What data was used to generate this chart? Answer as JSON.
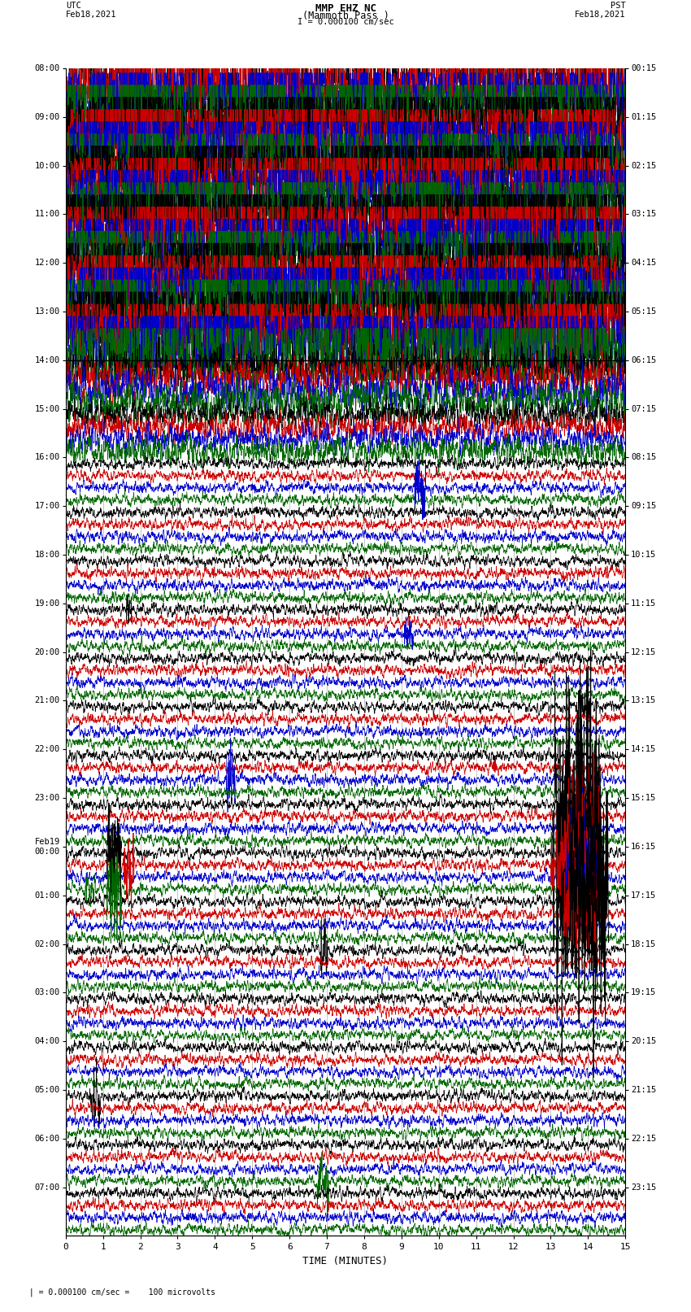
{
  "title_line1": "MMP EHZ NC",
  "title_line2": "(Mammoth Pass )",
  "scale_label": "I = 0.000100 cm/sec",
  "utc_label": "UTC\nFeb18,2021",
  "pst_label": "PST\nFeb18,2021",
  "xlabel": "TIME (MINUTES)",
  "footer": "= 0.000100 cm/sec =    100 microvolts",
  "fig_width": 8.5,
  "fig_height": 16.13,
  "bg_color": "#ffffff",
  "trace_colors": [
    "black",
    "#cc0000",
    "#0000cc",
    "#006600"
  ],
  "utc_times_left": [
    "08:00",
    "09:00",
    "10:00",
    "11:00",
    "12:00",
    "13:00",
    "14:00",
    "15:00",
    "16:00",
    "17:00",
    "18:00",
    "19:00",
    "20:00",
    "21:00",
    "22:00",
    "23:00",
    "Feb19\n00:00",
    "01:00",
    "02:00",
    "03:00",
    "04:00",
    "05:00",
    "06:00",
    "07:00"
  ],
  "pst_times_right": [
    "00:15",
    "01:15",
    "02:15",
    "03:15",
    "04:15",
    "05:15",
    "06:15",
    "07:15",
    "08:15",
    "09:15",
    "10:15",
    "11:15",
    "12:15",
    "13:15",
    "14:15",
    "15:15",
    "16:15",
    "17:15",
    "18:15",
    "19:15",
    "20:15",
    "21:15",
    "22:15",
    "23:15"
  ],
  "n_rows": 24,
  "n_traces_per_row": 4,
  "xmin": 0,
  "xmax": 15,
  "x_ticks": [
    0,
    1,
    2,
    3,
    4,
    5,
    6,
    7,
    8,
    9,
    10,
    11,
    12,
    13,
    14,
    15
  ],
  "clipped_rows": 6,
  "transition_rows": 2
}
